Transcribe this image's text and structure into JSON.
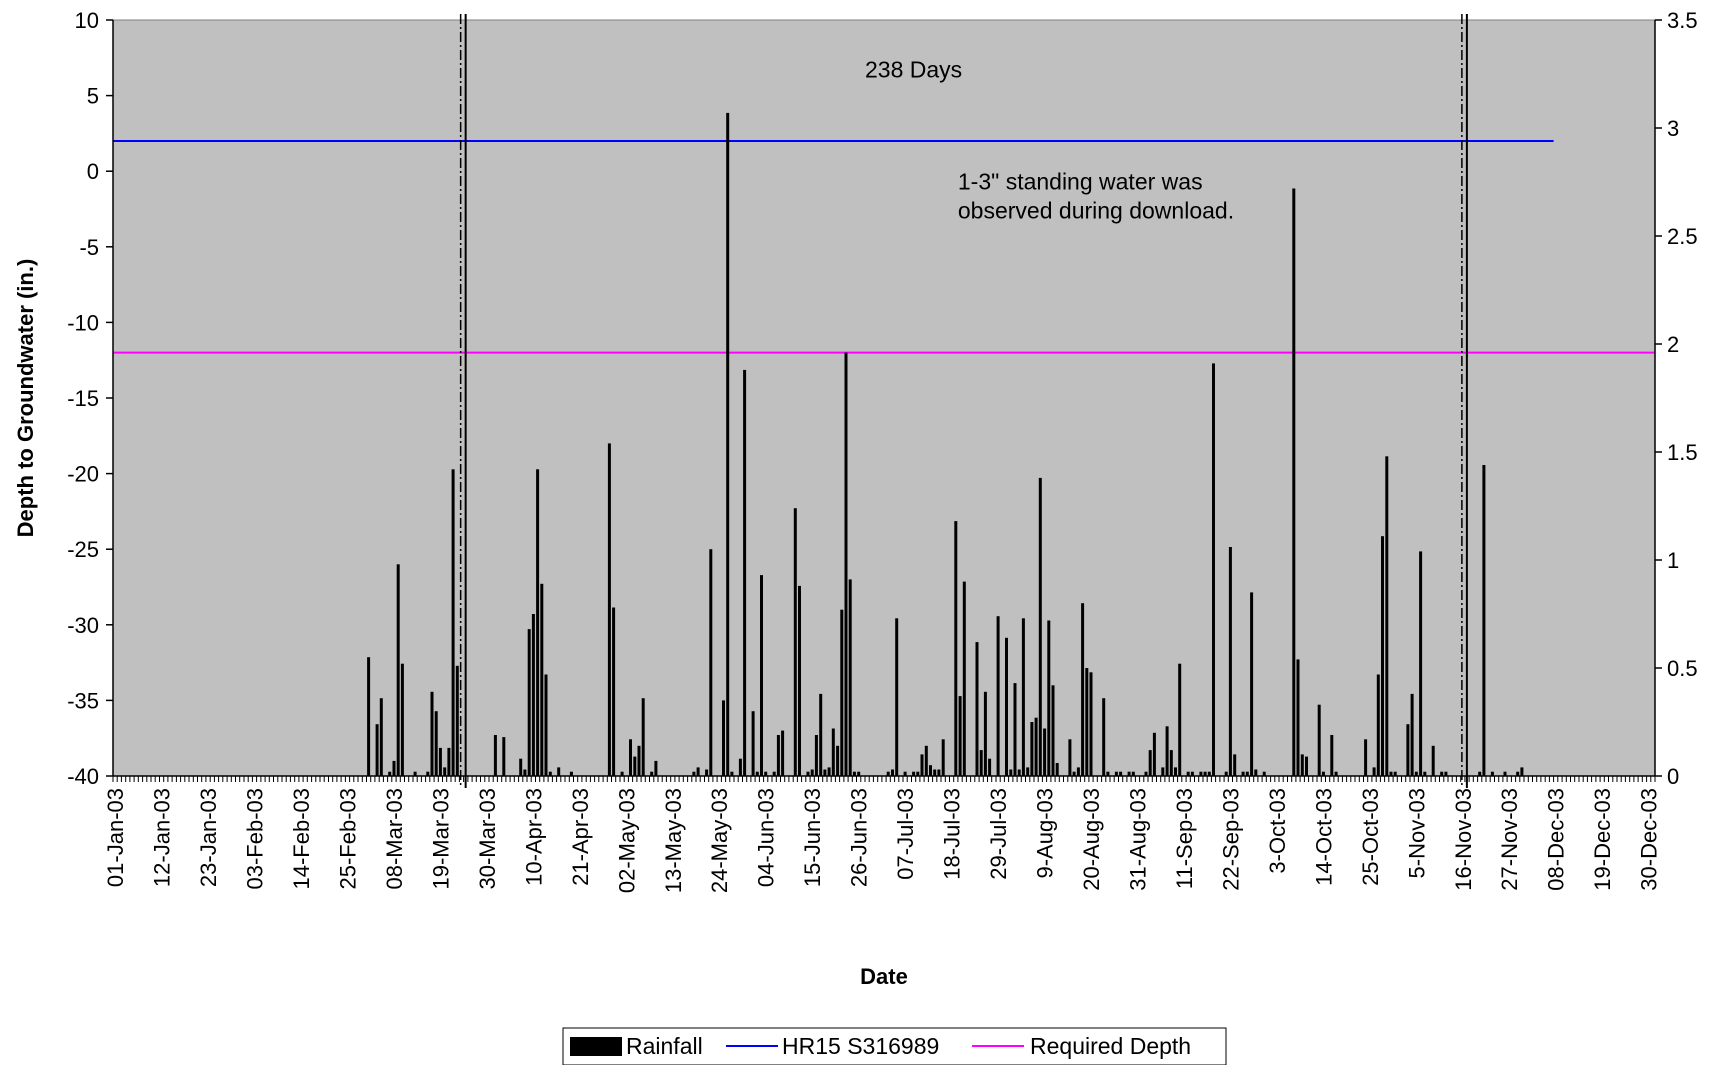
{
  "chart_data": {
    "type": "bar",
    "xlabel": "Date",
    "ylabel": "Depth to Groundwater (in.)",
    "x_range": [
      "2003-01-01",
      "2003-12-31"
    ],
    "x_tick_labels": [
      "01-Jan-03",
      "12-Jan-03",
      "23-Jan-03",
      "03-Feb-03",
      "14-Feb-03",
      "25-Feb-03",
      "08-Mar-03",
      "19-Mar-03",
      "30-Mar-03",
      "10-Apr-03",
      "21-Apr-03",
      "02-May-03",
      "13-May-03",
      "24-May-03",
      "04-Jun-03",
      "15-Jun-03",
      "26-Jun-03",
      "07-Jul-03",
      "18-Jul-03",
      "29-Jul-03",
      "9-Aug-03",
      "20-Aug-03",
      "31-Aug-03",
      "11-Sep-03",
      "22-Sep-03",
      "3-Oct-03",
      "14-Oct-03",
      "25-Oct-03",
      "5-Nov-03",
      "16-Nov-03",
      "27-Nov-03",
      "08-Dec-03",
      "19-Dec-03",
      "30-Dec-03"
    ],
    "y_left_range": [
      -40,
      10
    ],
    "y_left_ticks": [
      "10",
      "5",
      "0",
      "-5",
      "-10",
      "-15",
      "-20",
      "-25",
      "-30",
      "-35",
      "-40"
    ],
    "y_right_range": [
      0,
      3.5
    ],
    "y_right_ticks": [
      "3.5",
      "3",
      "2.5",
      "2",
      "1.5",
      "1",
      "0.5",
      "0"
    ],
    "grid": false,
    "legend_position": "bottom",
    "series": [
      {
        "name": "Rainfall",
        "type": "bar",
        "axis": "right",
        "color": "#000000",
        "points": [
          [
            "2003-03-02",
            0.55
          ],
          [
            "2003-03-04",
            0.24
          ],
          [
            "2003-03-05",
            0.36
          ],
          [
            "2003-03-07",
            0.02
          ],
          [
            "2003-03-08",
            0.07
          ],
          [
            "2003-03-09",
            0.98
          ],
          [
            "2003-03-10",
            0.52
          ],
          [
            "2003-03-13",
            0.02
          ],
          [
            "2003-03-16",
            0.02
          ],
          [
            "2003-03-17",
            0.39
          ],
          [
            "2003-03-18",
            0.3
          ],
          [
            "2003-03-19",
            0.13
          ],
          [
            "2003-03-20",
            0.04
          ],
          [
            "2003-03-21",
            0.13
          ],
          [
            "2003-03-22",
            1.42
          ],
          [
            "2003-03-23",
            0.51
          ],
          [
            "2003-04-01",
            0.19
          ],
          [
            "2003-04-03",
            0.18
          ],
          [
            "2003-04-07",
            0.08
          ],
          [
            "2003-04-08",
            0.03
          ],
          [
            "2003-04-09",
            0.68
          ],
          [
            "2003-04-10",
            0.75
          ],
          [
            "2003-04-11",
            1.42
          ],
          [
            "2003-04-12",
            0.89
          ],
          [
            "2003-04-13",
            0.47
          ],
          [
            "2003-04-14",
            0.02
          ],
          [
            "2003-04-16",
            0.04
          ],
          [
            "2003-04-19",
            0.02
          ],
          [
            "2003-04-28",
            1.54
          ],
          [
            "2003-04-29",
            0.78
          ],
          [
            "2003-05-01",
            0.02
          ],
          [
            "2003-05-03",
            0.17
          ],
          [
            "2003-05-04",
            0.09
          ],
          [
            "2003-05-05",
            0.14
          ],
          [
            "2003-05-06",
            0.36
          ],
          [
            "2003-05-08",
            0.02
          ],
          [
            "2003-05-09",
            0.07
          ],
          [
            "2003-05-18",
            0.02
          ],
          [
            "2003-05-19",
            0.04
          ],
          [
            "2003-05-21",
            0.03
          ],
          [
            "2003-05-22",
            1.05
          ],
          [
            "2003-05-25",
            0.35
          ],
          [
            "2003-05-26",
            3.07
          ],
          [
            "2003-05-27",
            0.02
          ],
          [
            "2003-05-29",
            0.08
          ],
          [
            "2003-05-30",
            1.88
          ],
          [
            "2003-06-01",
            0.3
          ],
          [
            "2003-06-02",
            0.02
          ],
          [
            "2003-06-03",
            0.93
          ],
          [
            "2003-06-04",
            0.02
          ],
          [
            "2003-06-06",
            0.02
          ],
          [
            "2003-06-07",
            0.19
          ],
          [
            "2003-06-08",
            0.21
          ],
          [
            "2003-06-11",
            1.24
          ],
          [
            "2003-06-12",
            0.88
          ],
          [
            "2003-06-14",
            0.02
          ],
          [
            "2003-06-15",
            0.03
          ],
          [
            "2003-06-16",
            0.19
          ],
          [
            "2003-06-17",
            0.38
          ],
          [
            "2003-06-18",
            0.03
          ],
          [
            "2003-06-19",
            0.04
          ],
          [
            "2003-06-20",
            0.22
          ],
          [
            "2003-06-21",
            0.14
          ],
          [
            "2003-06-22",
            0.77
          ],
          [
            "2003-06-23",
            1.96
          ],
          [
            "2003-06-24",
            0.91
          ],
          [
            "2003-06-25",
            0.02
          ],
          [
            "2003-06-26",
            0.02
          ],
          [
            "2003-07-03",
            0.02
          ],
          [
            "2003-07-04",
            0.03
          ],
          [
            "2003-07-05",
            0.73
          ],
          [
            "2003-07-07",
            0.02
          ],
          [
            "2003-07-09",
            0.02
          ],
          [
            "2003-07-10",
            0.02
          ],
          [
            "2003-07-11",
            0.1
          ],
          [
            "2003-07-12",
            0.14
          ],
          [
            "2003-07-13",
            0.05
          ],
          [
            "2003-07-14",
            0.03
          ],
          [
            "2003-07-15",
            0.03
          ],
          [
            "2003-07-16",
            0.17
          ],
          [
            "2003-07-19",
            1.18
          ],
          [
            "2003-07-20",
            0.37
          ],
          [
            "2003-07-21",
            0.9
          ],
          [
            "2003-07-24",
            0.62
          ],
          [
            "2003-07-25",
            0.12
          ],
          [
            "2003-07-26",
            0.39
          ],
          [
            "2003-07-27",
            0.08
          ],
          [
            "2003-07-29",
            0.74
          ],
          [
            "2003-07-31",
            0.64
          ],
          [
            "2003-08-01",
            0.03
          ],
          [
            "2003-08-02",
            0.43
          ],
          [
            "2003-08-03",
            0.03
          ],
          [
            "2003-08-04",
            0.73
          ],
          [
            "2003-08-05",
            0.04
          ],
          [
            "2003-08-06",
            0.25
          ],
          [
            "2003-08-07",
            0.27
          ],
          [
            "2003-08-08",
            1.38
          ],
          [
            "2003-08-09",
            0.22
          ],
          [
            "2003-08-10",
            0.72
          ],
          [
            "2003-08-11",
            0.42
          ],
          [
            "2003-08-12",
            0.06
          ],
          [
            "2003-08-15",
            0.17
          ],
          [
            "2003-08-16",
            0.02
          ],
          [
            "2003-08-17",
            0.04
          ],
          [
            "2003-08-18",
            0.8
          ],
          [
            "2003-08-19",
            0.5
          ],
          [
            "2003-08-20",
            0.48
          ],
          [
            "2003-08-23",
            0.36
          ],
          [
            "2003-08-24",
            0.02
          ],
          [
            "2003-08-26",
            0.02
          ],
          [
            "2003-08-27",
            0.02
          ],
          [
            "2003-08-29",
            0.02
          ],
          [
            "2003-08-30",
            0.02
          ],
          [
            "2003-09-02",
            0.02
          ],
          [
            "2003-09-03",
            0.12
          ],
          [
            "2003-09-04",
            0.2
          ],
          [
            "2003-09-06",
            0.04
          ],
          [
            "2003-09-07",
            0.23
          ],
          [
            "2003-09-08",
            0.12
          ],
          [
            "2003-09-09",
            0.04
          ],
          [
            "2003-09-10",
            0.52
          ],
          [
            "2003-09-12",
            0.02
          ],
          [
            "2003-09-13",
            0.02
          ],
          [
            "2003-09-15",
            0.02
          ],
          [
            "2003-09-16",
            0.02
          ],
          [
            "2003-09-17",
            0.02
          ],
          [
            "2003-09-18",
            1.91
          ],
          [
            "2003-09-21",
            0.02
          ],
          [
            "2003-09-22",
            1.06
          ],
          [
            "2003-09-23",
            0.1
          ],
          [
            "2003-09-25",
            0.02
          ],
          [
            "2003-09-26",
            0.02
          ],
          [
            "2003-09-27",
            0.85
          ],
          [
            "2003-09-28",
            0.03
          ],
          [
            "2003-09-30",
            0.02
          ],
          [
            "2003-10-07",
            2.72
          ],
          [
            "2003-10-08",
            0.54
          ],
          [
            "2003-10-09",
            0.1
          ],
          [
            "2003-10-10",
            0.09
          ],
          [
            "2003-10-13",
            0.33
          ],
          [
            "2003-10-14",
            0.02
          ],
          [
            "2003-10-16",
            0.19
          ],
          [
            "2003-10-17",
            0.02
          ],
          [
            "2003-10-24",
            0.17
          ],
          [
            "2003-10-26",
            0.04
          ],
          [
            "2003-10-27",
            0.47
          ],
          [
            "2003-10-28",
            1.11
          ],
          [
            "2003-10-29",
            1.48
          ],
          [
            "2003-10-30",
            0.02
          ],
          [
            "2003-10-31",
            0.02
          ],
          [
            "2003-11-03",
            0.24
          ],
          [
            "2003-11-04",
            0.38
          ],
          [
            "2003-11-05",
            0.02
          ],
          [
            "2003-11-06",
            1.04
          ],
          [
            "2003-11-07",
            0.02
          ],
          [
            "2003-11-09",
            0.14
          ],
          [
            "2003-11-11",
            0.02
          ],
          [
            "2003-11-12",
            0.02
          ],
          [
            "2003-11-20",
            0.02
          ],
          [
            "2003-11-21",
            1.44
          ],
          [
            "2003-11-23",
            0.02
          ],
          [
            "2003-11-26",
            0.02
          ],
          [
            "2003-11-29",
            0.02
          ],
          [
            "2003-11-30",
            0.04
          ]
        ]
      },
      {
        "name": "HR15 S316989",
        "type": "line",
        "axis": "left",
        "color": "#0000ff",
        "points": [
          [
            "2003-01-01",
            2
          ],
          [
            "2003-12-08",
            2
          ]
        ]
      },
      {
        "name": "Required Depth",
        "type": "line",
        "axis": "left",
        "color": "#ff00ff",
        "points": [
          [
            "2003-01-01",
            -12
          ],
          [
            "2003-12-31",
            -12
          ]
        ]
      }
    ],
    "vertical_markers": [
      "2003-03-25",
      "2003-11-17"
    ],
    "annotations": [
      {
        "text_lines": [
          "238 Days"
        ],
        "x": "2003-06-28",
        "y": 6.2
      },
      {
        "text_lines": [
          "1-3\" standing water was",
          "observed during download."
        ],
        "x": "2003-07-20",
        "y": -1.2
      }
    ],
    "plot_background": "#c0c0c0"
  }
}
